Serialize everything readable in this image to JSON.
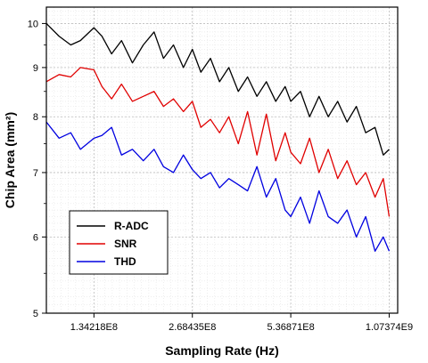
{
  "chart_data": {
    "type": "line",
    "xlabel": "Sampling Rate (Hz)",
    "ylabel": "Chip Area  (mm²)",
    "x_scale": "log2",
    "y_scale": "log",
    "xlim": [
      96000000,
      1140000000
    ],
    "ylim": [
      5,
      10.4
    ],
    "x_ticks": [
      {
        "value": 134218000,
        "label": "1.34218E8"
      },
      {
        "value": 268435000,
        "label": "2.68435E8"
      },
      {
        "value": 536871000,
        "label": "5.36871E8"
      },
      {
        "value": 1073740000,
        "label": "1.07374E9"
      }
    ],
    "y_ticks": [
      {
        "value": 5,
        "label": "5"
      },
      {
        "value": 6,
        "label": "6"
      },
      {
        "value": 7,
        "label": "7"
      },
      {
        "value": 8,
        "label": "8"
      },
      {
        "value": 9,
        "label": "9"
      },
      {
        "value": 10,
        "label": "10"
      }
    ],
    "grid": true,
    "legend_position": "bottom-left",
    "x": [
      96000000,
      105000000,
      114000000,
      122000000,
      134218000,
      142000000,
      152000000,
      163000000,
      176000000,
      190000000,
      205000000,
      219000000,
      235000000,
      252000000,
      268435000,
      285000000,
      305000000,
      325000000,
      347000000,
      371000000,
      396000000,
      423000000,
      452000000,
      483000000,
      516000000,
      536871000,
      575000000,
      613000000,
      655000000,
      699000000,
      747000000,
      798000000,
      852000000,
      910000000,
      972000000,
      1030000000,
      1073740000
    ],
    "series": [
      {
        "name": "R-ADC",
        "color": "#000000",
        "values": [
          10.0,
          9.7,
          9.5,
          9.6,
          9.9,
          9.7,
          9.3,
          9.6,
          9.1,
          9.5,
          9.8,
          9.2,
          9.5,
          9.0,
          9.4,
          8.9,
          9.2,
          8.7,
          9.0,
          8.5,
          8.8,
          8.4,
          8.7,
          8.3,
          8.6,
          8.3,
          8.5,
          8.0,
          8.4,
          8.0,
          8.3,
          7.9,
          8.2,
          7.7,
          7.8,
          7.3,
          7.4
        ]
      },
      {
        "name": "SNR",
        "color": "#e00000",
        "values": [
          8.7,
          8.85,
          8.8,
          9.0,
          8.95,
          8.6,
          8.35,
          8.65,
          8.3,
          8.4,
          8.5,
          8.2,
          8.35,
          8.1,
          8.3,
          7.8,
          7.95,
          7.7,
          8.0,
          7.5,
          8.1,
          7.3,
          8.05,
          7.2,
          7.7,
          7.35,
          7.15,
          7.6,
          7.0,
          7.4,
          6.9,
          7.2,
          6.8,
          7.0,
          6.6,
          6.9,
          6.3
        ]
      },
      {
        "name": "THD",
        "color": "#0000e0",
        "values": [
          7.9,
          7.6,
          7.7,
          7.4,
          7.6,
          7.65,
          7.8,
          7.3,
          7.4,
          7.2,
          7.4,
          7.1,
          7.0,
          7.3,
          7.05,
          6.9,
          7.0,
          6.75,
          6.9,
          6.8,
          6.7,
          7.1,
          6.6,
          6.9,
          6.4,
          6.3,
          6.6,
          6.2,
          6.7,
          6.3,
          6.2,
          6.4,
          6.0,
          6.3,
          5.8,
          6.0,
          5.8
        ]
      }
    ]
  }
}
